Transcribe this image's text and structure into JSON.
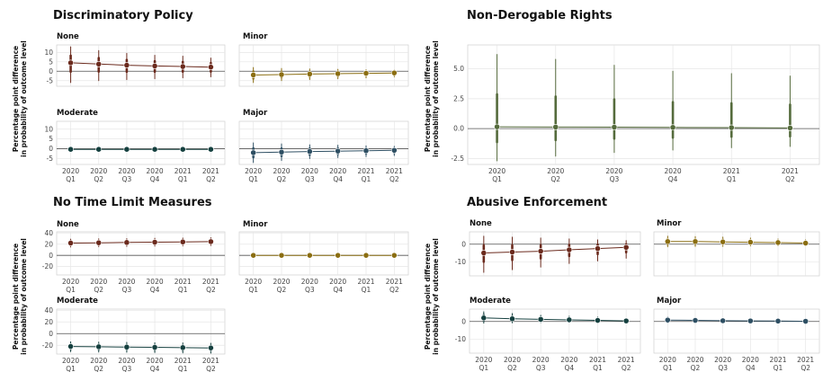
{
  "colors": {
    "None": "#6b2a1d",
    "Minor": "#8b6e12",
    "Moderate": "#15403f",
    "Major": "#2e4f63",
    "NonDerogable": "#556b3c",
    "zero_line": "#555555",
    "grid": "#e6e6e6"
  },
  "chart_data": [
    {
      "type": "scatter",
      "title": "Discriminatory Policy",
      "ylabel": "Percentage point difference in probability of outcome level",
      "categories": [
        "2020 Q1",
        "2020 Q2",
        "2020 Q3",
        "2020 Q4",
        "2021 Q1",
        "2021 Q2"
      ],
      "x_tick_labels": [
        [
          "2020",
          "Q1"
        ],
        [
          "2020",
          "Q2"
        ],
        [
          "2020",
          "Q3"
        ],
        [
          "2020",
          "Q4"
        ],
        [
          "2021",
          "Q1"
        ],
        [
          "2021",
          "Q2"
        ]
      ],
      "y_ticks": [
        10,
        5,
        0,
        -5
      ],
      "ylim": [
        -8,
        14
      ],
      "panels": [
        {
          "name": "None",
          "values": [
            4.5,
            3.8,
            3.2,
            2.8,
            2.5,
            2.2
          ],
          "low": [
            -6,
            -5,
            -4.5,
            -4,
            -3.5,
            -3
          ],
          "high": [
            13,
            11,
            9.5,
            8.5,
            8,
            7
          ]
        },
        {
          "name": "Minor",
          "values": [
            -2,
            -1.8,
            -1.5,
            -1.3,
            -1.1,
            -0.9
          ],
          "low": [
            -6,
            -5,
            -4.5,
            -4,
            -3.5,
            -3
          ],
          "high": [
            2,
            1.5,
            1.2,
            1,
            0.8,
            0.6
          ]
        },
        {
          "name": "Moderate",
          "values": [
            -0.3,
            -0.3,
            -0.3,
            -0.3,
            -0.3,
            -0.3
          ],
          "low": [
            -1,
            -1,
            -1,
            -1,
            -1,
            -1
          ],
          "high": [
            0.4,
            0.4,
            0.4,
            0.4,
            0.4,
            0.4
          ]
        },
        {
          "name": "Major",
          "values": [
            -2,
            -1.7,
            -1.4,
            -1.2,
            -1,
            -0.8
          ],
          "low": [
            -7,
            -6,
            -5,
            -4.5,
            -4,
            -3.5
          ],
          "high": [
            3,
            2.5,
            2,
            1.8,
            1.5,
            1.2
          ]
        }
      ]
    },
    {
      "type": "scatter",
      "title": "Non-Derogable Rights",
      "ylabel": "Percentage point difference in probability of outcome level",
      "categories": [
        "2020 Q1",
        "2020 Q2",
        "2020 Q3",
        "2020 Q4",
        "2021 Q1",
        "2021 Q2"
      ],
      "x_tick_labels": [
        [
          "2020",
          "Q1"
        ],
        [
          "2020",
          "Q2"
        ],
        [
          "2020",
          "Q3"
        ],
        [
          "2020",
          "Q4"
        ],
        [
          "2021",
          "Q1"
        ],
        [
          "2021",
          "Q2"
        ]
      ],
      "y_ticks": [
        "5.0",
        "2.5",
        "0.0",
        "-2.5"
      ],
      "ylim": [
        -3,
        7
      ],
      "panels": [
        {
          "name": "",
          "values": [
            0.15,
            0.13,
            0.12,
            0.1,
            0.08,
            0.05
          ],
          "low": [
            -2.7,
            -2.3,
            -2,
            -1.8,
            -1.6,
            -1.5
          ],
          "high": [
            6.2,
            5.8,
            5.3,
            4.8,
            4.6,
            4.4
          ]
        }
      ]
    },
    {
      "type": "scatter",
      "title": "No Time Limit Measures",
      "ylabel": "Percentage point difference in probability of outcome level",
      "categories": [
        "2020 Q1",
        "2020 Q2",
        "2020 Q3",
        "2020 Q4",
        "2021 Q1",
        "2021 Q2"
      ],
      "x_tick_labels": [
        [
          "2020",
          "Q1"
        ],
        [
          "2020",
          "Q2"
        ],
        [
          "2020",
          "Q3"
        ],
        [
          "2020",
          "Q4"
        ],
        [
          "2021",
          "Q1"
        ],
        [
          "2021",
          "Q2"
        ]
      ],
      "y_ticks": [
        40,
        20,
        0,
        -20
      ],
      "ylim": [
        -35,
        42
      ],
      "panels": [
        {
          "name": "None",
          "values": [
            22,
            22.5,
            23,
            23.5,
            24,
            24.5
          ],
          "low": [
            15,
            15.5,
            16,
            16.5,
            17,
            17.5
          ],
          "high": [
            29,
            29.5,
            30,
            30.5,
            31,
            31.5
          ]
        },
        {
          "name": "Minor",
          "values": [
            0,
            0,
            0,
            0,
            0,
            0
          ],
          "low": [
            -1.5,
            -1.5,
            -1.5,
            -1.5,
            -1.5,
            -1.5
          ],
          "high": [
            1.5,
            1.5,
            1.5,
            1.5,
            1.5,
            1.5
          ]
        },
        {
          "name": "Moderate",
          "values": [
            -22,
            -22.5,
            -23,
            -23.5,
            -24,
            -24.5
          ],
          "low": [
            -31,
            -31.5,
            -32,
            -32.5,
            -33,
            -33.5
          ],
          "high": [
            -14,
            -14.5,
            -15,
            -15.5,
            -16,
            -16.5
          ]
        }
      ]
    },
    {
      "type": "scatter",
      "title": "Abusive Enforcement",
      "ylabel": "Percentage point difference in probability of outcome level",
      "categories": [
        "2020 Q1",
        "2020 Q2",
        "2020 Q3",
        "2020 Q4",
        "2021 Q1",
        "2021 Q2"
      ],
      "x_tick_labels": [
        [
          "2020",
          "Q1"
        ],
        [
          "2020",
          "Q2"
        ],
        [
          "2020",
          "Q3"
        ],
        [
          "2020",
          "Q4"
        ],
        [
          "2021",
          "Q1"
        ],
        [
          "2021",
          "Q2"
        ]
      ],
      "y_ticks": [
        0,
        -10
      ],
      "ylim": [
        -18,
        7
      ],
      "panels": [
        {
          "name": "None",
          "values": [
            -5,
            -4.5,
            -4,
            -3.2,
            -2.5,
            -1.8
          ],
          "low": [
            -16,
            -14.5,
            -13,
            -11,
            -9.5,
            -8
          ],
          "high": [
            4.5,
            4,
            3.5,
            3,
            2.5,
            2
          ]
        },
        {
          "name": "Minor",
          "values": [
            1.5,
            1.5,
            1.3,
            1.1,
            0.9,
            0.6
          ],
          "low": [
            -1.5,
            -1.3,
            -1.2,
            -1,
            -0.9,
            -0.8
          ],
          "high": [
            4.5,
            4.3,
            4,
            3.5,
            3,
            2.5
          ]
        },
        {
          "name": "Moderate",
          "values": [
            2,
            1.5,
            1.2,
            0.9,
            0.6,
            0.3
          ],
          "low": [
            -1,
            -0.8,
            -0.6,
            -0.5,
            -0.4,
            -0.3
          ],
          "high": [
            5.5,
            4.5,
            3.5,
            3,
            2.5,
            1.5
          ]
        },
        {
          "name": "Major",
          "values": [
            0.8,
            0.6,
            0.4,
            0.3,
            0.2,
            0.1
          ],
          "low": [
            -0.8,
            -0.6,
            -0.5,
            -0.4,
            -0.3,
            -0.2
          ],
          "high": [
            2.5,
            2,
            1.5,
            1.2,
            1,
            0.8
          ]
        }
      ]
    }
  ]
}
